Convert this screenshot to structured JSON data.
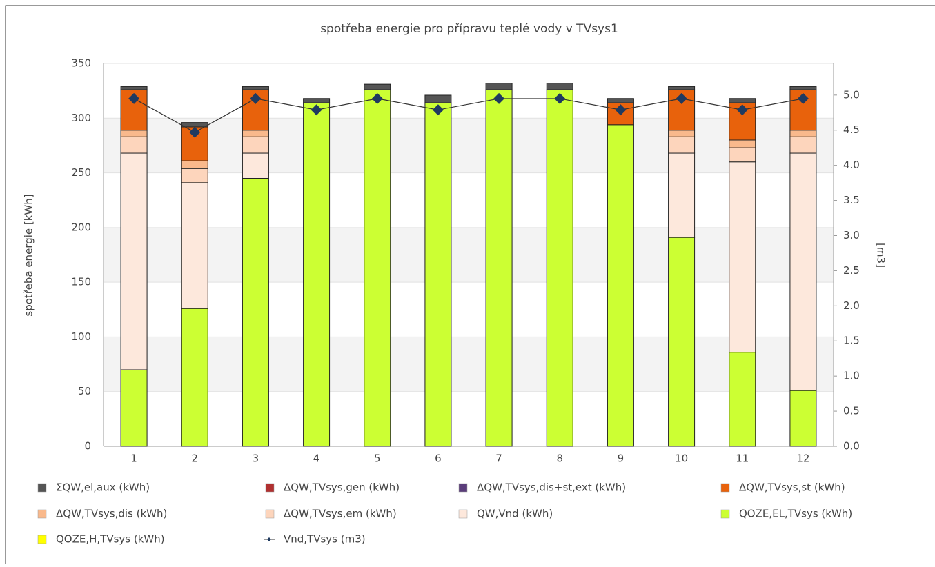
{
  "chart_data": {
    "type": "bar",
    "stacked": true,
    "title": "spotřeba energie pro přípravu teplé vody v TVsys1",
    "ylabel": "spotřeba energie [kWh]",
    "y2label": "[m3]",
    "categories": [
      "1",
      "2",
      "3",
      "4",
      "5",
      "6",
      "7",
      "8",
      "9",
      "10",
      "11",
      "12"
    ],
    "ylim": [
      0,
      350
    ],
    "yticks": [
      0,
      50,
      100,
      150,
      200,
      250,
      300,
      350
    ],
    "y2lim": [
      0,
      5.45
    ],
    "y2ticks": [
      {
        "value": 0,
        "label": "0.0"
      },
      0.5,
      {
        "value": 1,
        "label": "1.0"
      },
      1.5,
      {
        "value": 2,
        "label": "2.0"
      },
      2.5,
      {
        "value": 3,
        "label": "3.0"
      },
      3.5,
      {
        "value": 4,
        "label": "4.0"
      },
      4.5,
      {
        "value": 5,
        "label": "5.0"
      }
    ],
    "grid": true,
    "series": [
      {
        "name": "ΣQW,el,aux (kWh)",
        "color": "#555555",
        "values": [
          3,
          4,
          3,
          4,
          5,
          7,
          6,
          6,
          4,
          3,
          4,
          3
        ]
      },
      {
        "name": "ΔQW,TVsys,gen (kWh)",
        "color": "#b03030",
        "values": [
          0,
          0,
          0,
          0,
          0,
          0,
          0,
          0,
          0,
          0,
          0,
          0
        ]
      },
      {
        "name": "ΔQW,TVsys,dis+st,ext (kWh)",
        "color": "#5a3d7a",
        "values": [
          0,
          0,
          0,
          0,
          0,
          0,
          0,
          0,
          0,
          0,
          0,
          0
        ]
      },
      {
        "name": "ΔQW,TVsys,st (kWh)",
        "color": "#e8620c",
        "values": [
          37,
          31,
          37,
          0,
          0,
          0,
          0,
          0,
          20,
          37,
          34,
          37
        ]
      },
      {
        "name": "ΔQW,TVsys,dis (kWh)",
        "color": "#f9b98c",
        "values": [
          6,
          7,
          6,
          0,
          0,
          0,
          0,
          0,
          0,
          6,
          7,
          6
        ]
      },
      {
        "name": "ΔQW,TVsys,em (kWh)",
        "color": "#fdd5bc",
        "values": [
          15,
          13,
          15,
          0,
          0,
          0,
          0,
          0,
          0,
          15,
          13,
          15
        ]
      },
      {
        "name": "QW,Vnd (kWh)",
        "color": "#fde8dc",
        "values": [
          198,
          115,
          23,
          0,
          0,
          0,
          0,
          0,
          0,
          77,
          174,
          217
        ]
      },
      {
        "name": "QOZE,EL,TVsys (kWh)",
        "color": "#ccff33",
        "values": [
          70,
          126,
          245,
          314,
          326,
          314,
          326,
          326,
          294,
          191,
          86,
          51
        ]
      },
      {
        "name": "QOZE,H,TVsys (kWh)",
        "color": "#ffff00",
        "values": [
          0,
          0,
          0,
          0,
          0,
          0,
          0,
          0,
          0,
          0,
          0,
          0
        ]
      },
      {
        "name": "Vnd,TVsys (m3)",
        "color": "#1f3a60",
        "type": "line",
        "axis": "y2",
        "values": [
          4.95,
          4.47,
          4.95,
          4.79,
          4.95,
          4.79,
          4.95,
          4.95,
          4.79,
          4.95,
          4.79,
          4.95
        ]
      }
    ]
  }
}
